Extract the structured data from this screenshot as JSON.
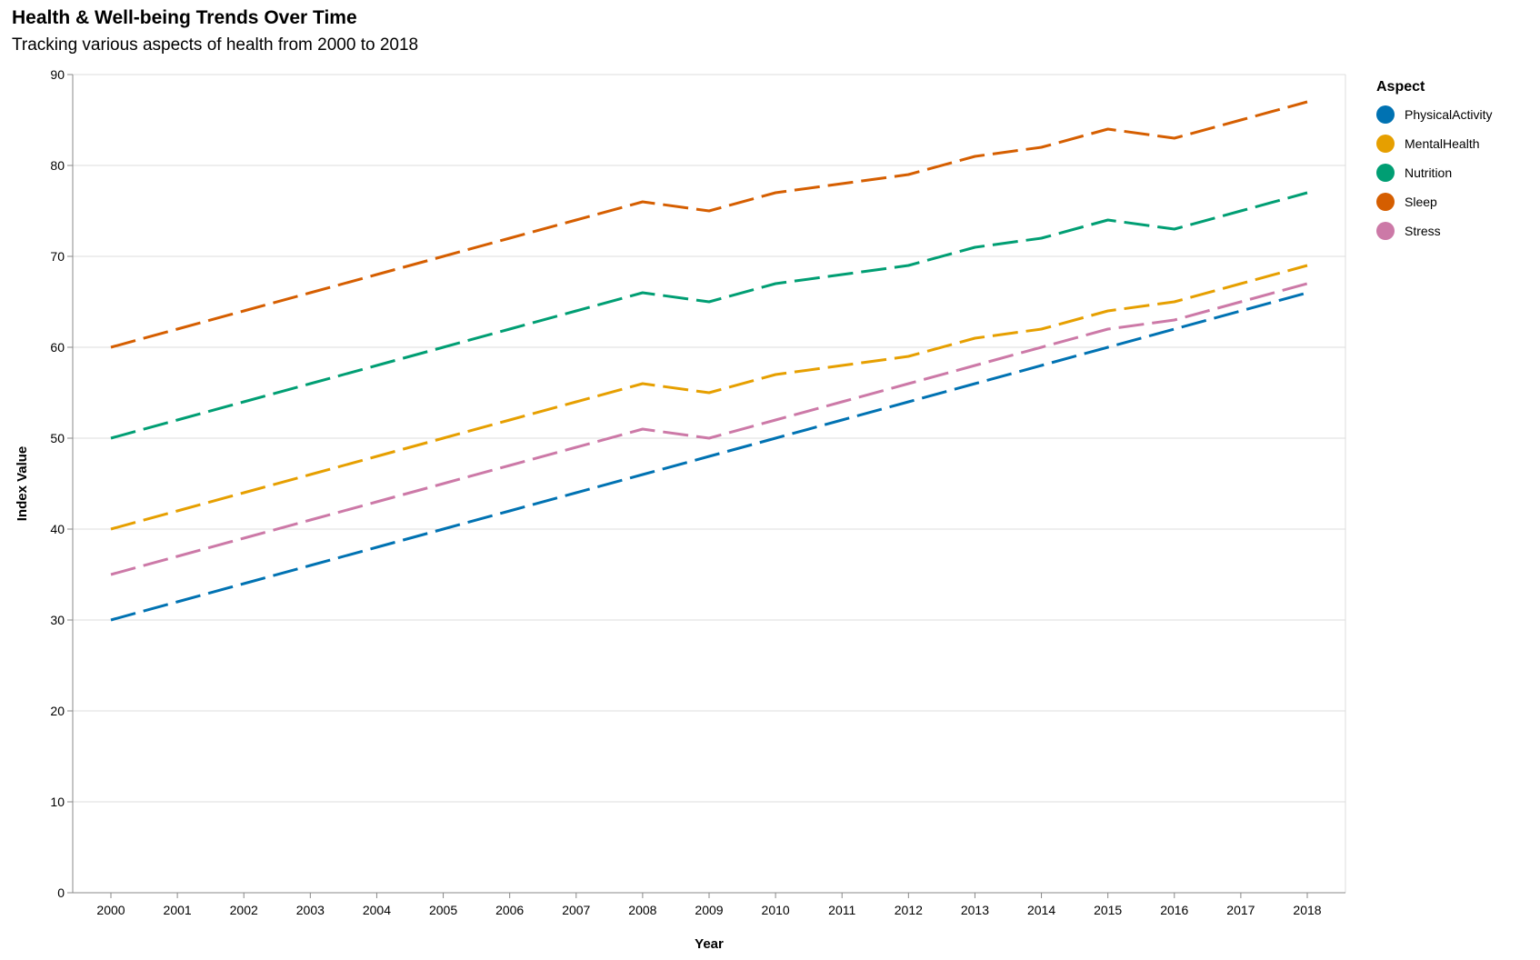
{
  "chart_data": {
    "type": "line",
    "title": "Health & Well-being Trends Over Time",
    "subtitle": "Tracking various aspects of health from 2000 to 2018",
    "xlabel": "Year",
    "ylabel": "Index Value",
    "ylim": [
      0,
      90
    ],
    "yticks": [
      0,
      10,
      20,
      30,
      40,
      50,
      60,
      70,
      80,
      90
    ],
    "x": [
      "2000",
      "2001",
      "2002",
      "2003",
      "2004",
      "2005",
      "2006",
      "2007",
      "2008",
      "2009",
      "2010",
      "2011",
      "2012",
      "2013",
      "2014",
      "2015",
      "2016",
      "2017",
      "2018"
    ],
    "grid": "horizontal",
    "line_style": "dashed",
    "legend_title": "Aspect",
    "legend_position": "top-right",
    "series": [
      {
        "name": "PhysicalActivity",
        "color": "#0072b2",
        "values": [
          30,
          32,
          34,
          36,
          38,
          40,
          42,
          44,
          46,
          48,
          50,
          52,
          54,
          56,
          58,
          60,
          62,
          64,
          66
        ]
      },
      {
        "name": "MentalHealth",
        "color": "#e69f00",
        "values": [
          40,
          42,
          44,
          46,
          48,
          50,
          52,
          54,
          56,
          55,
          57,
          58,
          59,
          61,
          62,
          64,
          65,
          67,
          69
        ]
      },
      {
        "name": "Nutrition",
        "color": "#009e73",
        "values": [
          50,
          52,
          54,
          56,
          58,
          60,
          62,
          64,
          66,
          65,
          67,
          68,
          69,
          71,
          72,
          74,
          73,
          75,
          77
        ]
      },
      {
        "name": "Sleep",
        "color": "#d55e00",
        "values": [
          60,
          62,
          64,
          66,
          68,
          70,
          72,
          74,
          76,
          75,
          77,
          78,
          79,
          81,
          82,
          84,
          83,
          85,
          87
        ]
      },
      {
        "name": "Stress",
        "color": "#cc79a7",
        "values": [
          35,
          37,
          39,
          41,
          43,
          45,
          47,
          49,
          51,
          50,
          52,
          54,
          56,
          58,
          60,
          62,
          63,
          65,
          67
        ]
      }
    ]
  }
}
